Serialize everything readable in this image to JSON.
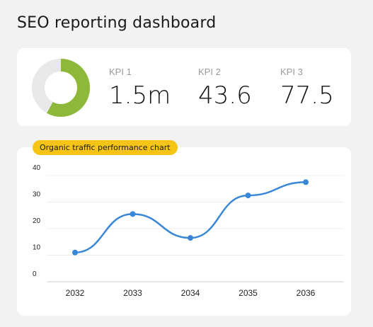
{
  "header": {
    "title": "SEO reporting dashboard"
  },
  "kpis": {
    "donut_fraction": 0.58,
    "donut_color": "#8db83a",
    "donut_track_color": "#e8e8e8",
    "items": [
      {
        "label": "KPI 1",
        "value": "1.5m"
      },
      {
        "label": "KPI 2",
        "value": "43.6"
      },
      {
        "label": "KPI 3",
        "value": "77.5"
      }
    ]
  },
  "colors": {
    "accent_yellow": "#f5c414",
    "line_blue": "#3a87d8"
  },
  "chart_data": {
    "type": "line",
    "title": "Organic traffic performance chart",
    "categories": [
      "2032",
      "2033",
      "2034",
      "2035",
      "2036"
    ],
    "series": [
      {
        "values": [
          11,
          25.5,
          16.5,
          32.5,
          37.5
        ]
      }
    ],
    "yticks": [
      "0",
      "10",
      "20",
      "30",
      "40"
    ],
    "ylim": [
      0,
      40
    ],
    "grid": true,
    "smooth": true,
    "legend": "none"
  }
}
